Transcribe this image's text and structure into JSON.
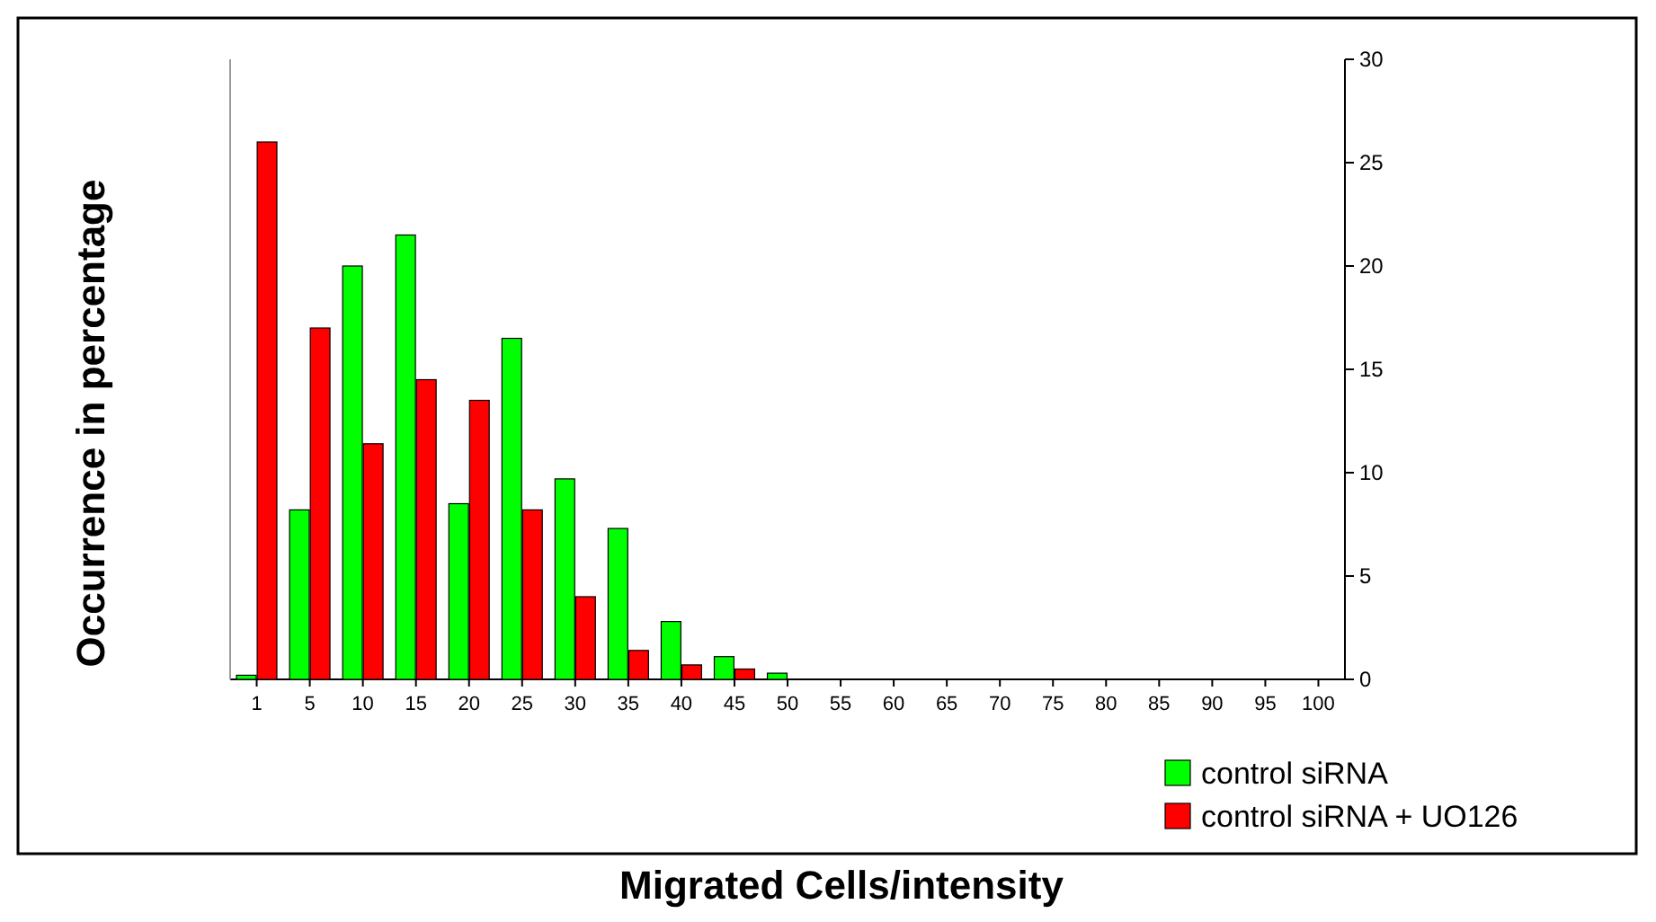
{
  "chart_data": {
    "type": "bar",
    "xlabel": "Migrated Cells/intensity",
    "ylabel": "Occurrence in percentage",
    "categories": [
      "1",
      "5",
      "10",
      "15",
      "20",
      "25",
      "30",
      "35",
      "40",
      "45",
      "50",
      "55",
      "60",
      "65",
      "70",
      "75",
      "80",
      "85",
      "90",
      "95",
      "100"
    ],
    "series": [
      {
        "name": "control siRNA",
        "color": "#00ff00",
        "values": [
          0.2,
          8.2,
          20,
          21.5,
          8.5,
          16.5,
          9.7,
          7.3,
          2.8,
          1.1,
          0.3,
          0,
          0,
          0,
          0,
          0,
          0,
          0,
          0,
          0,
          0
        ]
      },
      {
        "name": "control siRNA + UO126",
        "color": "#ff0000",
        "values": [
          26,
          17,
          11.4,
          14.5,
          13.5,
          8.2,
          4,
          1.4,
          0.7,
          0.5,
          0,
          0,
          0,
          0,
          0,
          0,
          0,
          0,
          0,
          0,
          0
        ]
      }
    ],
    "ylim": [
      0,
      30
    ],
    "yticks": [
      0,
      5,
      10,
      15,
      20,
      25,
      30
    ],
    "legend": "bottom right"
  }
}
